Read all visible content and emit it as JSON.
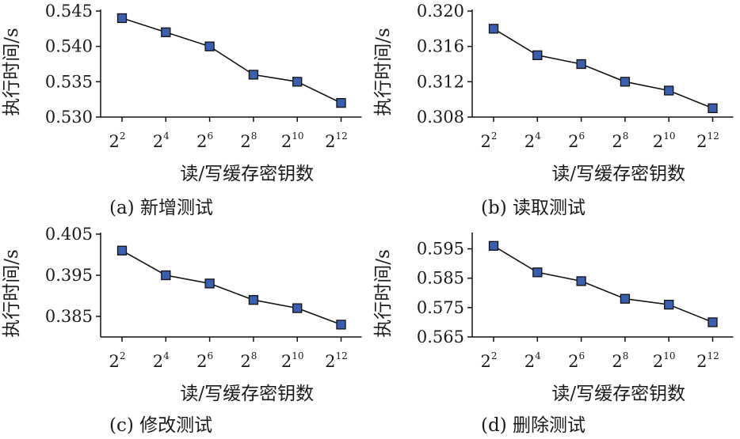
{
  "chart_data": [
    {
      "type": "line",
      "caption": "(a) 新增测试",
      "xlabel": "读/写缓存密钥数",
      "ylabel": "执行时间/s",
      "categories": [
        "2^2",
        "2^4",
        "2^6",
        "2^8",
        "2^10",
        "2^12"
      ],
      "x_exponents": [
        "2",
        "4",
        "6",
        "8",
        "10",
        "12"
      ],
      "x_base": "2",
      "yticks": [
        "0.545",
        "0.540",
        "0.535",
        "0.530"
      ],
      "ylim": [
        0.53,
        0.545
      ],
      "values": [
        0.544,
        0.542,
        0.54,
        0.536,
        0.535,
        0.532
      ]
    },
    {
      "type": "line",
      "caption": "(b) 读取测试",
      "xlabel": "读/写缓存密钥数",
      "ylabel": "执行时间/s",
      "categories": [
        "2^2",
        "2^4",
        "2^6",
        "2^8",
        "2^10",
        "2^12"
      ],
      "x_exponents": [
        "2",
        "4",
        "6",
        "8",
        "10",
        "12"
      ],
      "x_base": "2",
      "yticks": [
        "0.320",
        "0.316",
        "0.312",
        "0.308"
      ],
      "ylim": [
        0.308,
        0.32
      ],
      "values": [
        0.318,
        0.315,
        0.314,
        0.312,
        0.311,
        0.309
      ]
    },
    {
      "type": "line",
      "caption": "(c) 修改测试",
      "xlabel": "读/写缓存密钥数",
      "ylabel": "执行时间/s",
      "categories": [
        "2^2",
        "2^4",
        "2^6",
        "2^8",
        "2^10",
        "2^12"
      ],
      "x_exponents": [
        "2",
        "4",
        "6",
        "8",
        "10",
        "12"
      ],
      "x_base": "2",
      "yticks": [
        "0.405",
        "0.395",
        "0.385"
      ],
      "ylim": [
        0.38,
        0.405
      ],
      "values": [
        0.401,
        0.395,
        0.393,
        0.389,
        0.387,
        0.383
      ]
    },
    {
      "type": "line",
      "caption": "(d) 删除测试",
      "xlabel": "读/写缓存密钥数",
      "ylabel": "执行时间/s",
      "categories": [
        "2^2",
        "2^4",
        "2^6",
        "2^8",
        "2^10",
        "2^12"
      ],
      "x_exponents": [
        "2",
        "4",
        "6",
        "8",
        "10",
        "12"
      ],
      "x_base": "2",
      "yticks": [
        "0.595",
        "0.585",
        "0.575",
        "0.565"
      ],
      "ylim": [
        0.565,
        0.6
      ],
      "values": [
        0.596,
        0.587,
        0.584,
        0.578,
        0.576,
        0.57
      ]
    }
  ],
  "colors": {
    "marker_fill": "#3a5fae",
    "marker_stroke": "#111111",
    "line": "#111111",
    "axis": "#111111"
  }
}
